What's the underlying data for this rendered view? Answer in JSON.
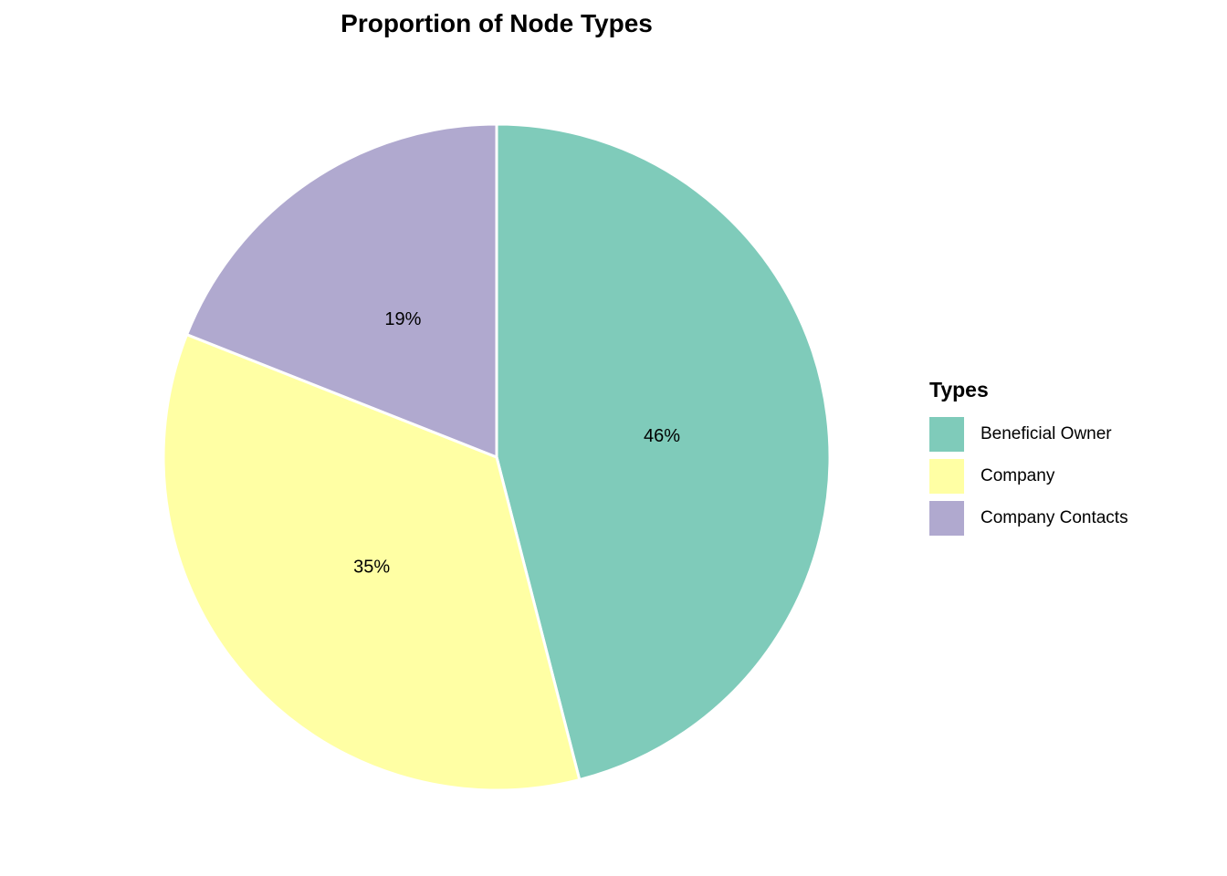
{
  "chart_data": {
    "type": "pie",
    "title": "Proportion of Node Types",
    "legend_title": "Types",
    "legend_position": "right",
    "categories": [
      "Beneficial Owner",
      "Company",
      "Company Contacts"
    ],
    "values": [
      46,
      35,
      19
    ],
    "labels": [
      "46%",
      "35%",
      "19%"
    ],
    "colors": [
      "#7fcbba",
      "#ffffa4",
      "#b0a9cf"
    ],
    "start": "12 o'clock",
    "direction": "clockwise"
  }
}
